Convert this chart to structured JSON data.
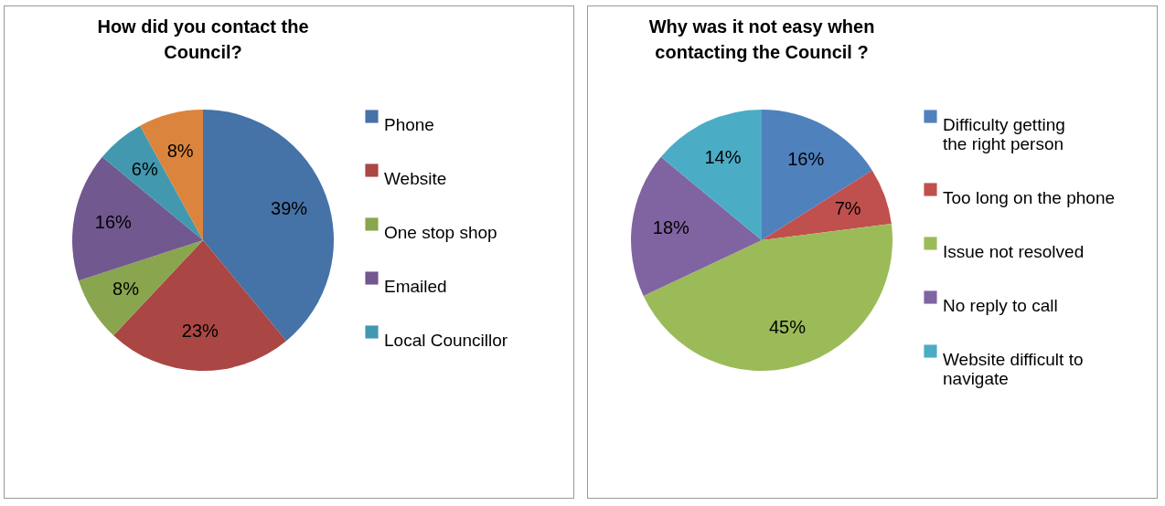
{
  "chart_data": [
    {
      "type": "pie",
      "title": "How did you contact the Council?",
      "categories": [
        "Phone",
        "Website",
        "One stop shop",
        "Emailed",
        "Local Councillor",
        null
      ],
      "values": [
        39,
        23,
        8,
        16,
        6,
        8
      ],
      "colors": [
        "#4572a7",
        "#aa4643",
        "#89a54e",
        "#71588f",
        "#4198af",
        "#db843d"
      ],
      "value_labels": [
        "39%",
        "23%",
        "8%",
        "16%",
        "6%",
        "8%"
      ],
      "legend": "right"
    },
    {
      "type": "pie",
      "title": "Why  was it not easy when contacting the Council ?",
      "categories": [
        "Difficulty getting the right person",
        "Too long on the phone",
        "Issue not resolved",
        "No reply to call",
        "Website difficult to navigate"
      ],
      "values": [
        16,
        7,
        45,
        18,
        14
      ],
      "colors": [
        "#4f81bd",
        "#c0504d",
        "#9bbb59",
        "#8064a2",
        "#4bacc6"
      ],
      "value_labels": [
        "16%",
        "7%",
        "45%",
        "18%",
        "14%"
      ],
      "legend": "right"
    }
  ]
}
